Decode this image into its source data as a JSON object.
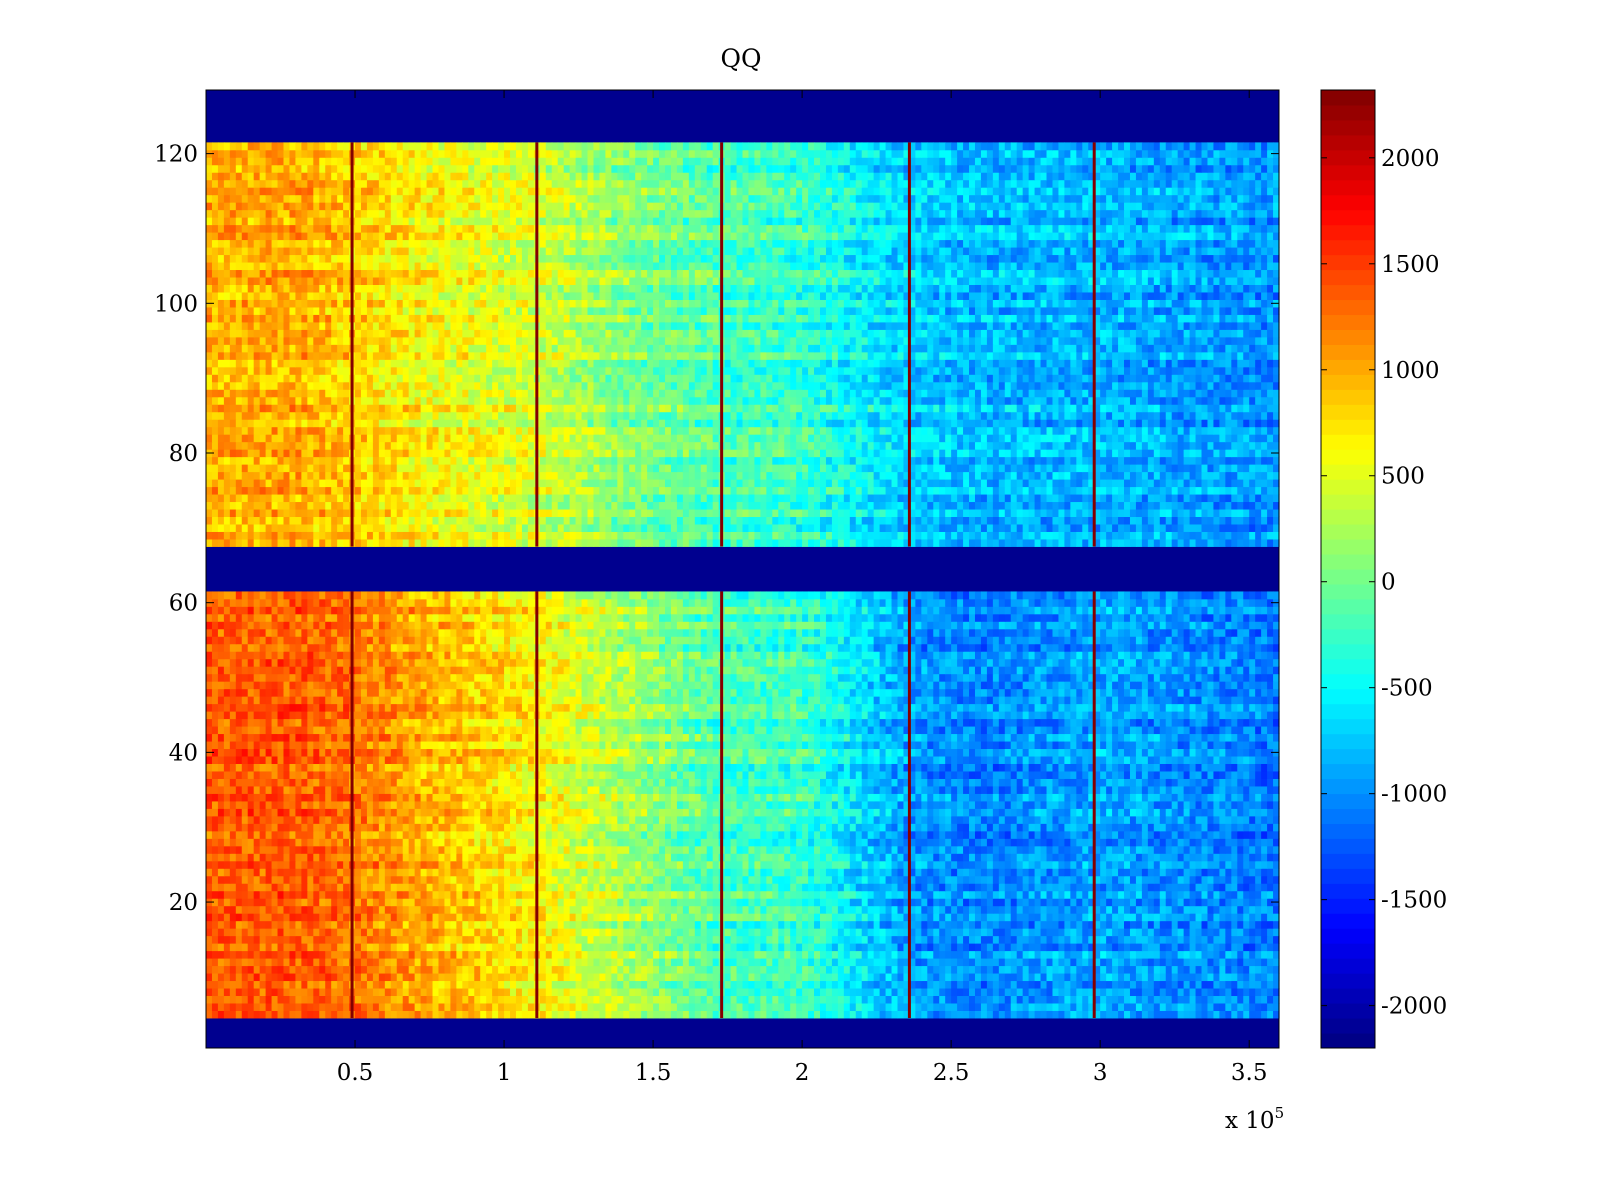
{
  "chart_data": {
    "type": "heatmap",
    "title": "QQ",
    "xlabel": "",
    "ylabel": "",
    "x_exponent_label": "x 10",
    "x_exponent_power": "5",
    "xlim": [
      0,
      3.6
    ],
    "ylim": [
      1,
      128
    ],
    "x_ticks": [
      {
        "value": 0.5,
        "label": "0.5"
      },
      {
        "value": 1.0,
        "label": "1"
      },
      {
        "value": 1.5,
        "label": "1.5"
      },
      {
        "value": 2.0,
        "label": "2"
      },
      {
        "value": 2.5,
        "label": "2.5"
      },
      {
        "value": 3.0,
        "label": "3"
      },
      {
        "value": 3.5,
        "label": "3.5"
      }
    ],
    "y_ticks": [
      {
        "value": 20,
        "label": "20"
      },
      {
        "value": 40,
        "label": "40"
      },
      {
        "value": 60,
        "label": "60"
      },
      {
        "value": 80,
        "label": "80"
      },
      {
        "value": 100,
        "label": "100"
      },
      {
        "value": 120,
        "label": "120"
      }
    ],
    "colorbar": {
      "min": -2200,
      "max": 2320,
      "colormap": "jet",
      "ticks": [
        {
          "value": 2000,
          "label": "2000"
        },
        {
          "value": 1500,
          "label": "1500"
        },
        {
          "value": 1000,
          "label": "1000"
        },
        {
          "value": 500,
          "label": "500"
        },
        {
          "value": 0,
          "label": "0"
        },
        {
          "value": -500,
          "label": "-500"
        },
        {
          "value": -1000,
          "label": "-1000"
        },
        {
          "value": -1500,
          "label": "-1500"
        },
        {
          "value": -2000,
          "label": "-2000"
        }
      ]
    },
    "masked_row_ranges": [
      [
        1,
        4
      ],
      [
        62,
        67
      ],
      [
        122,
        128
      ]
    ],
    "segment_boundaries_x": [
      0.49,
      1.11,
      1.73,
      2.36,
      2.98
    ],
    "column_profile": {
      "x": [
        0.0,
        0.3,
        0.49,
        0.8,
        1.11,
        1.4,
        1.73,
        2.0,
        2.36,
        2.6,
        2.98,
        3.3,
        3.6
      ],
      "lower_rows_mean": [
        1350,
        1350,
        1250,
        900,
        650,
        250,
        -200,
        -250,
        -950,
        -1050,
        -900,
        -1000,
        -1100
      ],
      "upper_rows_mean": [
        1000,
        1000,
        850,
        600,
        450,
        100,
        -150,
        -250,
        -700,
        -800,
        -800,
        -900,
        -950
      ]
    },
    "noise_amplitude": 280,
    "boundary_line_value": 2300
  }
}
